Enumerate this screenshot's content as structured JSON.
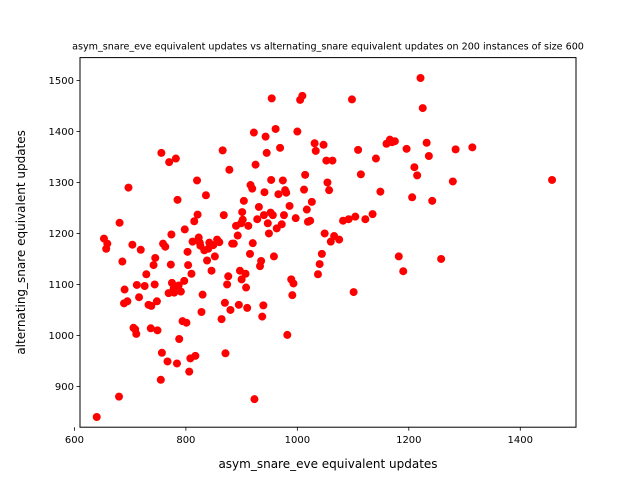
{
  "chart_data": {
    "type": "scatter",
    "title": "asym_snare_eve equivalent updates vs alternating_snare equivalent updates on 200 instances of size 600",
    "xlabel": "asym_snare_eve equivalent updates",
    "ylabel": "alternating_snare equivalent updates",
    "xlim": [
      610,
      1500
    ],
    "ylim": [
      820,
      1545
    ],
    "xticks": [
      600,
      800,
      1000,
      1200,
      1400
    ],
    "yticks": [
      900,
      1000,
      1100,
      1200,
      1300,
      1400,
      1500
    ],
    "grid": false,
    "marker_color": "#ff0000",
    "points": [
      [
        640,
        840
      ],
      [
        653,
        1190
      ],
      [
        657,
        1170
      ],
      [
        659,
        1180
      ],
      [
        680,
        880
      ],
      [
        681,
        1221
      ],
      [
        686,
        1145
      ],
      [
        689,
        1063
      ],
      [
        690,
        1090
      ],
      [
        695,
        1067
      ],
      [
        697,
        1290
      ],
      [
        704,
        1178
      ],
      [
        706,
        1015
      ],
      [
        709,
        1012
      ],
      [
        711,
        1003
      ],
      [
        712,
        1099
      ],
      [
        716,
        1075
      ],
      [
        719,
        1168
      ],
      [
        726,
        1097
      ],
      [
        729,
        1120
      ],
      [
        733,
        1060
      ],
      [
        737,
        1014
      ],
      [
        738,
        1058
      ],
      [
        742,
        1138
      ],
      [
        744,
        1100
      ],
      [
        745,
        1152
      ],
      [
        748,
        1067
      ],
      [
        749,
        1010
      ],
      [
        755,
        913
      ],
      [
        756,
        1358
      ],
      [
        757,
        966
      ],
      [
        759,
        1180
      ],
      [
        763,
        1174
      ],
      [
        767,
        949
      ],
      [
        769,
        1083
      ],
      [
        770,
        1340
      ],
      [
        773,
        1139
      ],
      [
        774,
        1198
      ],
      [
        775,
        1103
      ],
      [
        778,
        1092
      ],
      [
        779,
        1084
      ],
      [
        782,
        1347
      ],
      [
        784,
        945
      ],
      [
        785,
        1266
      ],
      [
        787,
        1098
      ],
      [
        788,
        993
      ],
      [
        791,
        1086
      ],
      [
        794,
        1028
      ],
      [
        797,
        1107
      ],
      [
        798,
        1208
      ],
      [
        801,
        1025
      ],
      [
        803,
        1164
      ],
      [
        804,
        1138
      ],
      [
        806,
        929
      ],
      [
        808,
        955
      ],
      [
        810,
        1121
      ],
      [
        812,
        1184
      ],
      [
        815,
        1224
      ],
      [
        817,
        960
      ],
      [
        820,
        1304
      ],
      [
        821,
        1237
      ],
      [
        823,
        1192
      ],
      [
        825,
        1182
      ],
      [
        826,
        1176
      ],
      [
        828,
        1046
      ],
      [
        830,
        1080
      ],
      [
        833,
        1167
      ],
      [
        836,
        1275
      ],
      [
        838,
        1147
      ],
      [
        840,
        1170
      ],
      [
        842,
        1182
      ],
      [
        846,
        1127
      ],
      [
        849,
        1177
      ],
      [
        852,
        1155
      ],
      [
        856,
        1188
      ],
      [
        860,
        1183
      ],
      [
        864,
        1032
      ],
      [
        866,
        1363
      ],
      [
        868,
        1236
      ],
      [
        870,
        1064
      ],
      [
        871,
        965
      ],
      [
        874,
        1100
      ],
      [
        876,
        1116
      ],
      [
        878,
        1325
      ],
      [
        880,
        1050
      ],
      [
        883,
        1180
      ],
      [
        886,
        1180
      ],
      [
        890,
        1215
      ],
      [
        893,
        1196
      ],
      [
        895,
        1060
      ],
      [
        897,
        1127
      ],
      [
        899,
        1220
      ],
      [
        900,
        1110
      ],
      [
        901,
        1242
      ],
      [
        902,
        1227
      ],
      [
        904,
        1264
      ],
      [
        907,
        1121
      ],
      [
        908,
        1094
      ],
      [
        910,
        1054
      ],
      [
        912,
        1215
      ],
      [
        915,
        1160
      ],
      [
        916,
        1295
      ],
      [
        919,
        1288
      ],
      [
        920,
        1181
      ],
      [
        922,
        1398
      ],
      [
        923,
        875
      ],
      [
        925,
        1335
      ],
      [
        928,
        1228
      ],
      [
        931,
        1252
      ],
      [
        933,
        1136
      ],
      [
        935,
        1146
      ],
      [
        937,
        1037
      ],
      [
        939,
        1059
      ],
      [
        940,
        1236
      ],
      [
        941,
        1281
      ],
      [
        943,
        1390
      ],
      [
        945,
        1358
      ],
      [
        947,
        1220
      ],
      [
        949,
        1200
      ],
      [
        952,
        1241
      ],
      [
        953,
        1305
      ],
      [
        954,
        1465
      ],
      [
        956,
        1236
      ],
      [
        958,
        1155
      ],
      [
        961,
        1405
      ],
      [
        963,
        1210
      ],
      [
        966,
        1277
      ],
      [
        969,
        1368
      ],
      [
        972,
        1218
      ],
      [
        974,
        1304
      ],
      [
        976,
        1236
      ],
      [
        978,
        1285
      ],
      [
        980,
        1280
      ],
      [
        982,
        1001
      ],
      [
        986,
        1254
      ],
      [
        989,
        1110
      ],
      [
        991,
        1079
      ],
      [
        993,
        1102
      ],
      [
        997,
        1230
      ],
      [
        1000,
        1400
      ],
      [
        1005,
        1462
      ],
      [
        1009,
        1470
      ],
      [
        1012,
        1286
      ],
      [
        1014,
        1315
      ],
      [
        1017,
        1247
      ],
      [
        1019,
        1223
      ],
      [
        1023,
        1225
      ],
      [
        1026,
        1262
      ],
      [
        1031,
        1377
      ],
      [
        1033,
        1362
      ],
      [
        1037,
        1120
      ],
      [
        1040,
        1140
      ],
      [
        1044,
        1160
      ],
      [
        1047,
        1374
      ],
      [
        1049,
        1200
      ],
      [
        1052,
        1343
      ],
      [
        1054,
        1300
      ],
      [
        1057,
        1285
      ],
      [
        1060,
        1184
      ],
      [
        1063,
        1343
      ],
      [
        1066,
        1195
      ],
      [
        1075,
        1188
      ],
      [
        1082,
        1225
      ],
      [
        1092,
        1228
      ],
      [
        1098,
        1463
      ],
      [
        1101,
        1085
      ],
      [
        1104,
        1233
      ],
      [
        1109,
        1364
      ],
      [
        1114,
        1316
      ],
      [
        1122,
        1228
      ],
      [
        1135,
        1238
      ],
      [
        1141,
        1347
      ],
      [
        1149,
        1282
      ],
      [
        1160,
        1376
      ],
      [
        1166,
        1384
      ],
      [
        1170,
        1379
      ],
      [
        1175,
        1381
      ],
      [
        1182,
        1155
      ],
      [
        1190,
        1126
      ],
      [
        1196,
        1366
      ],
      [
        1206,
        1271
      ],
      [
        1210,
        1330
      ],
      [
        1215,
        1314
      ],
      [
        1221,
        1505
      ],
      [
        1225,
        1446
      ],
      [
        1232,
        1378
      ],
      [
        1236,
        1352
      ],
      [
        1242,
        1264
      ],
      [
        1258,
        1150
      ],
      [
        1279,
        1302
      ],
      [
        1284,
        1365
      ],
      [
        1314,
        1369
      ],
      [
        1457,
        1305
      ]
    ]
  }
}
